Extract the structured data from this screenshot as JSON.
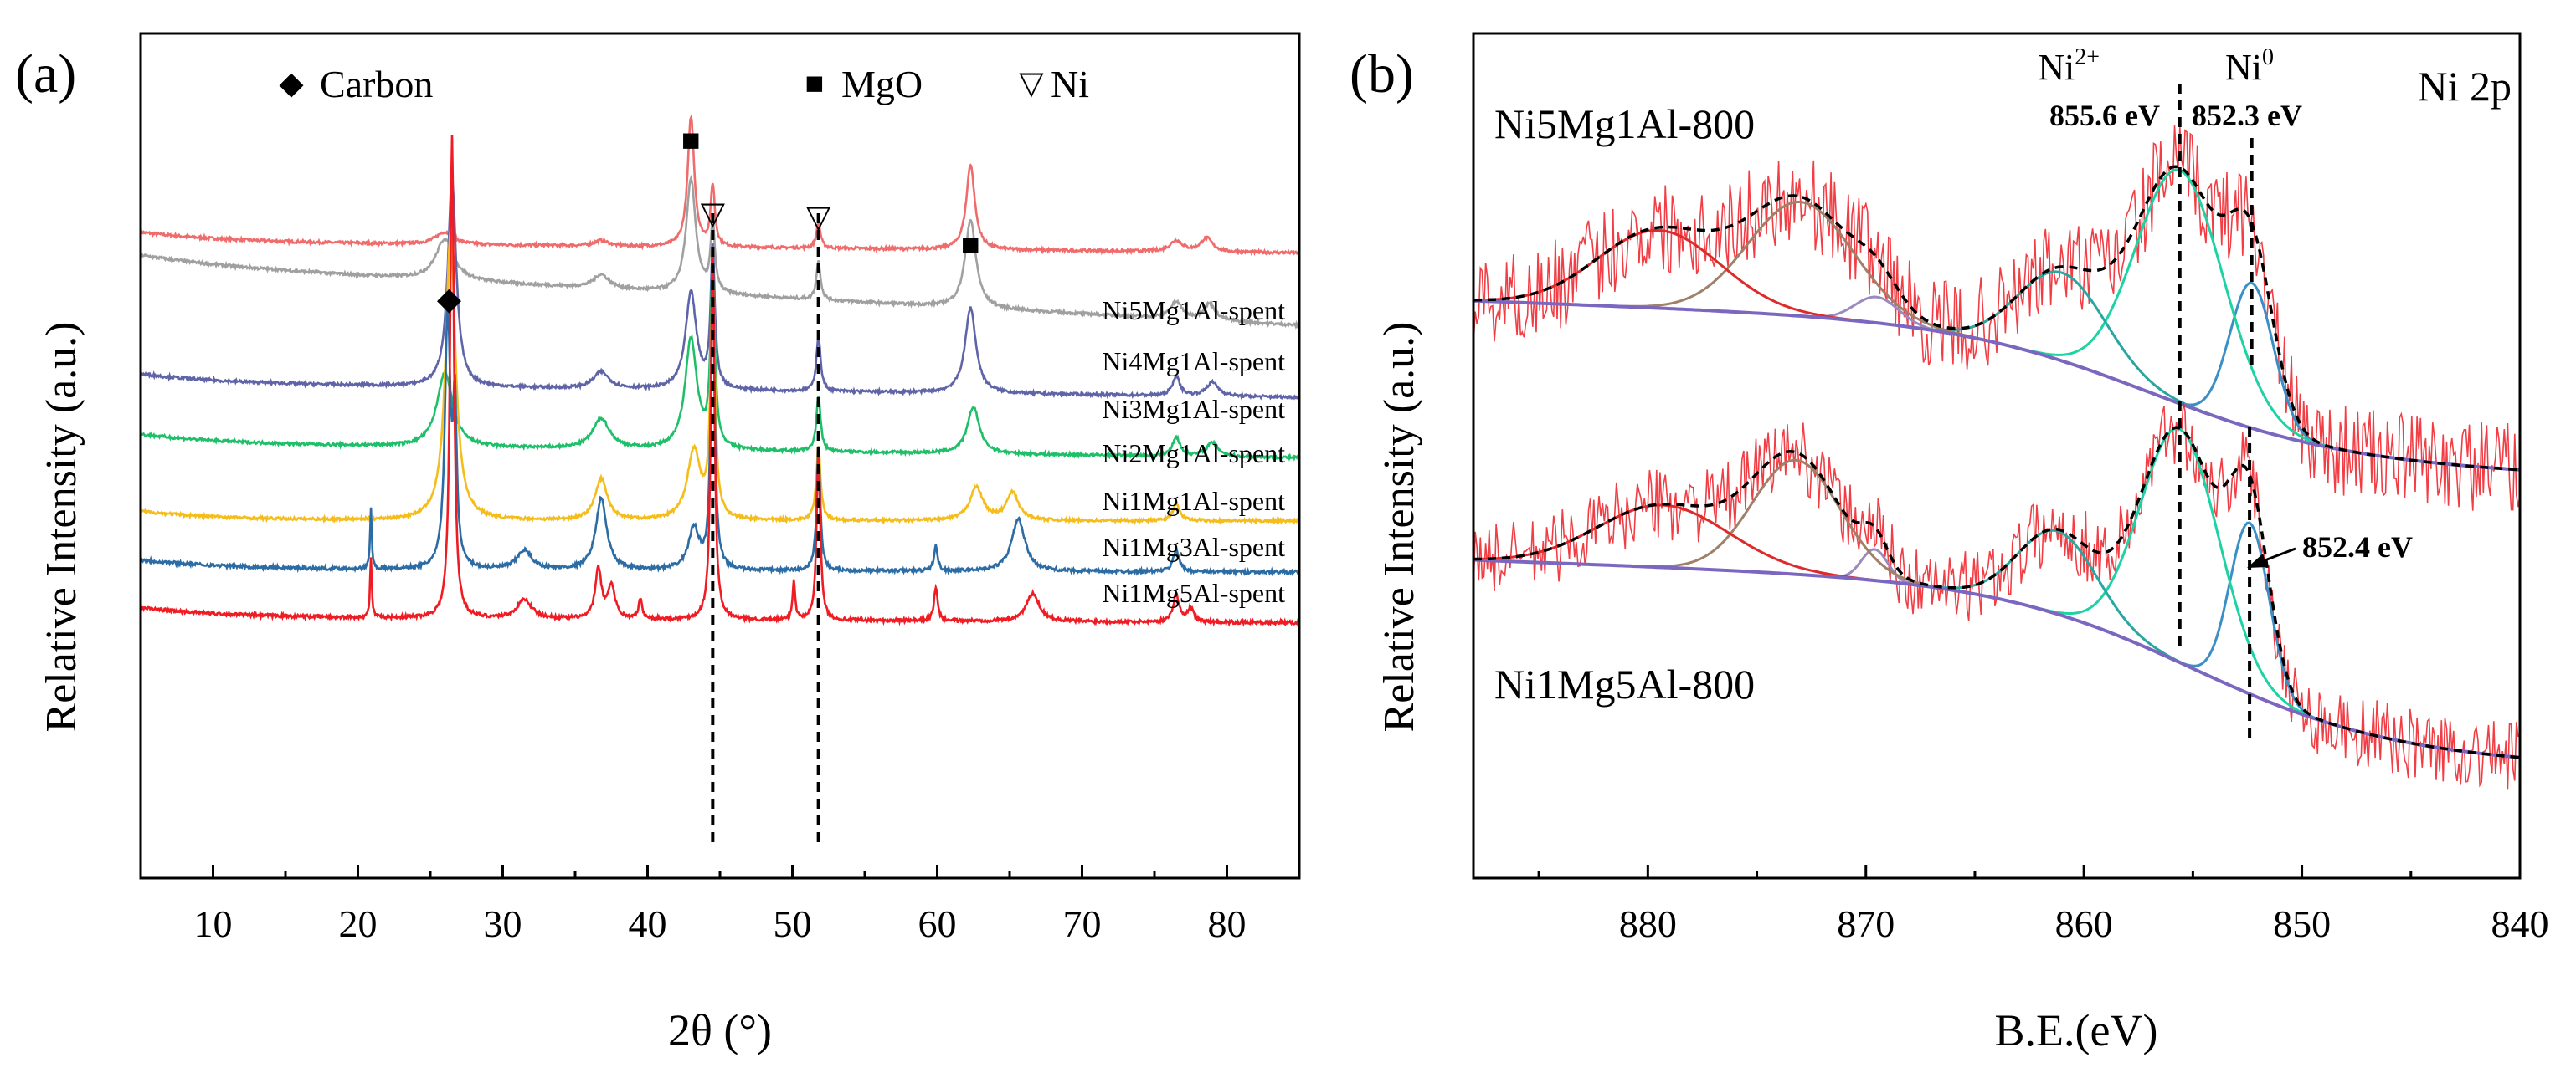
{
  "chart_data": [
    {
      "type": "line",
      "panel_label": "(a)",
      "xlabel": "2θ (°)",
      "ylabel": "Relative Intensity (a.u.)",
      "xlim": [
        5,
        85
      ],
      "xticks": [
        10,
        20,
        30,
        40,
        50,
        60,
        70,
        80
      ],
      "y_ticks_shown": false,
      "legend": [
        {
          "name": "Carbon",
          "marker": "diamond",
          "symbol": "◆"
        },
        {
          "name": "MgO",
          "marker": "square",
          "symbol": "■"
        },
        {
          "name": "Ni",
          "marker": "triangle-down-open",
          "symbol": "▽"
        }
      ],
      "series": [
        {
          "name": "Ni5Mg1Al-spent",
          "color": "#f06b6b",
          "baseline": 0.36,
          "tail": 0.32,
          "noise": 0.005,
          "peaks": [
            [
              26,
              0.045,
              1.5
            ],
            [
              36.8,
              0.02,
              1.2
            ],
            [
              43,
              0.47,
              0.55
            ],
            [
              44.5,
              0.22,
              0.35
            ],
            [
              51.8,
              0.09,
              0.35
            ],
            [
              62.3,
              0.31,
              0.7
            ],
            [
              76.5,
              0.04,
              1
            ],
            [
              78.6,
              0.05,
              1
            ]
          ]
        },
        {
          "name": "Ni4Mg1Al-spent",
          "color": "#a0a0a0",
          "baseline": 0.45,
          "tail": 0.23,
          "noise": 0.005,
          "peaks": [
            [
              26,
              0.15,
              1.5
            ],
            [
              36.8,
              0.05,
              1.3
            ],
            [
              43,
              0.41,
              0.8
            ],
            [
              44.5,
              0.25,
              0.35
            ],
            [
              51.8,
              0.14,
              0.35
            ],
            [
              62.3,
              0.32,
              0.9
            ],
            [
              76.5,
              0.06,
              1
            ],
            [
              78.8,
              0.06,
              1
            ]
          ]
        },
        {
          "name": "Ni3Mg1Al-spent",
          "color": "#5f64a8",
          "baseline": 0.18,
          "tail": 0.13,
          "noise": 0.005,
          "peaks": [
            [
              26.5,
              0.75,
              0.7
            ],
            [
              36.8,
              0.06,
              1.3
            ],
            [
              43,
              0.35,
              0.9
            ],
            [
              44.5,
              0.5,
              0.35
            ],
            [
              51.8,
              0.2,
              0.35
            ],
            [
              62.3,
              0.31,
              0.9
            ],
            [
              76.5,
              0.07,
              0.6
            ],
            [
              79,
              0.05,
              1
            ]
          ]
        },
        {
          "name": "Ni2Mg1Al-spent",
          "color": "#1fbf6a",
          "baseline": 0.14,
          "tail": 0.09,
          "noise": 0.005,
          "peaks": [
            [
              26,
              0.27,
              1.3
            ],
            [
              36.8,
              0.11,
              1.4
            ],
            [
              43,
              0.4,
              1.0
            ],
            [
              44.5,
              0.65,
              0.35
            ],
            [
              51.8,
              0.2,
              0.35
            ],
            [
              62.5,
              0.17,
              1.0
            ],
            [
              76.5,
              0.07,
              0.6
            ],
            [
              79,
              0.05,
              1
            ]
          ]
        },
        {
          "name": "Ni1Mg1Al-spent",
          "color": "#f5bd1b",
          "baseline": 0.04,
          "tail": 0.04,
          "noise": 0.005,
          "peaks": [
            [
              26.4,
              1.05,
              0.8
            ],
            [
              36.8,
              0.15,
              1.0
            ],
            [
              43.2,
              0.25,
              1.1
            ],
            [
              44.5,
              0.88,
              0.35
            ],
            [
              51.8,
              0.27,
              0.35
            ],
            [
              62.7,
              0.12,
              1.1
            ],
            [
              65.2,
              0.1,
              1.0
            ],
            [
              76.5,
              0.06,
              0.6
            ]
          ]
        },
        {
          "name": "Ni1Mg3Al-spent",
          "color": "#2c6ca5",
          "baseline": 0.04,
          "tail": 0.03,
          "noise": 0.006,
          "peaks": [
            [
              20.9,
              0.22,
              0.14
            ],
            [
              26.2,
              0.92,
              0.45
            ],
            [
              26.7,
              0.55,
              0.3
            ],
            [
              31.5,
              0.07,
              1.2
            ],
            [
              36.8,
              0.26,
              0.9
            ],
            [
              43.2,
              0.15,
              0.9
            ],
            [
              44.5,
              1.15,
              0.3
            ],
            [
              51.8,
              0.45,
              0.3
            ],
            [
              59.9,
              0.09,
              0.3
            ],
            [
              65.6,
              0.19,
              1.1
            ],
            [
              76.5,
              0.08,
              0.5
            ]
          ]
        },
        {
          "name": "Ni1Mg5Al-spent",
          "color": "#ef1c24",
          "baseline": 0.03,
          "tail": 0.01,
          "noise": 0.006,
          "peaks": [
            [
              20.9,
              0.22,
              0.14
            ],
            [
              26.5,
              1.75,
              0.32
            ],
            [
              31.5,
              0.07,
              1.2
            ],
            [
              36.6,
              0.18,
              0.5
            ],
            [
              37.5,
              0.12,
              0.6
            ],
            [
              39.5,
              0.07,
              0.3
            ],
            [
              44.5,
              1.35,
              0.3
            ],
            [
              50.1,
              0.14,
              0.22
            ],
            [
              51.8,
              0.62,
              0.3
            ],
            [
              59.9,
              0.12,
              0.3
            ],
            [
              66.6,
              0.1,
              1.1
            ],
            [
              76.5,
              0.1,
              0.5
            ],
            [
              77.5,
              0.05,
              0.5
            ]
          ]
        }
      ],
      "peak_markers": [
        {
          "phase": "Carbon",
          "x": 26.3,
          "symbol": "◆"
        },
        {
          "phase": "MgO",
          "x": 43.0,
          "symbol": "■"
        },
        {
          "phase": "Ni",
          "x": 44.5,
          "symbol": "▽"
        },
        {
          "phase": "Ni",
          "x": 51.8,
          "symbol": "▽"
        },
        {
          "phase": "MgO",
          "x": 62.3,
          "symbol": "■"
        }
      ],
      "reference_lines_x": [
        44.5,
        51.8
      ]
    },
    {
      "type": "line",
      "panel_label": "(b)",
      "title": "Ni 2p",
      "xlabel": "B.E.(eV)",
      "ylabel": "Relative Intensity (a.u.)",
      "xlim": [
        888,
        840
      ],
      "x_reversed": true,
      "xticks": [
        880,
        870,
        860,
        850,
        840
      ],
      "y_ticks_shown": false,
      "spectra": [
        {
          "name": "Ni5Mg1Al-800",
          "offset": 0.52,
          "bg_high": 0.3,
          "bg_low": 0.04,
          "bg_step": 857,
          "noise": 0.09,
          "components": [
            {
              "name": "Ni0 2p3/2",
              "center": 852.3,
              "height": 0.28,
              "width": 1.0,
              "color": "#3c8fc4"
            },
            {
              "name": "Ni2+ 2p3/2",
              "center": 855.6,
              "height": 0.45,
              "width": 2.0,
              "color": "#1fd2a4"
            },
            {
              "name": "satellite 861",
              "center": 861.0,
              "height": 0.17,
              "width": 2.0,
              "color": "#2aa6a0"
            },
            {
              "name": "Ni0 2p1/2",
              "center": 869.5,
              "height": 0.05,
              "width": 1.0,
              "color": "#9a8ac0"
            },
            {
              "name": "Ni2+ 2p1/2",
              "center": 873.0,
              "height": 0.22,
              "width": 2.4,
              "color": "#a08068"
            },
            {
              "name": "satellite 879",
              "center": 879.5,
              "height": 0.15,
              "width": 2.8,
              "color": "#dd2a2a"
            }
          ]
        },
        {
          "name": "Ni1Mg5Al-800",
          "offset": 0.0,
          "bg_high": 0.32,
          "bg_low": 0.0,
          "bg_step": 855,
          "noise": 0.07,
          "components": [
            {
              "name": "Ni0 2p3/2",
              "center": 852.4,
              "height": 0.33,
              "width": 0.9,
              "color": "#3c8fc4"
            },
            {
              "name": "Ni2+ 2p3/2",
              "center": 855.6,
              "height": 0.45,
              "width": 1.8,
              "color": "#1fd2a4"
            },
            {
              "name": "satellite 861",
              "center": 861.2,
              "height": 0.16,
              "width": 1.8,
              "color": "#2aa6a0"
            },
            {
              "name": "Ni0 2p1/2",
              "center": 869.6,
              "height": 0.06,
              "width": 0.6,
              "color": "#9a8ac0"
            },
            {
              "name": "Ni2+ 2p1/2",
              "center": 873.2,
              "height": 0.22,
              "width": 2.0,
              "color": "#a08068"
            },
            {
              "name": "satellite 879",
              "center": 879.3,
              "height": 0.12,
              "width": 3.0,
              "color": "#dd2a2a"
            }
          ]
        }
      ],
      "colors": {
        "raw_data": "#ef1c24",
        "envelope": "#000000",
        "background": "#7b67c0"
      },
      "annotations": [
        {
          "label": "Ni",
          "sup": "2+",
          "value": "855.6 eV",
          "x": 855.6
        },
        {
          "label": "Ni",
          "sup": "0",
          "value": "852.3 eV",
          "x": 852.3
        },
        {
          "value": "852.4 eV",
          "x": 852.4,
          "arrow": true
        }
      ],
      "reference_lines_x": [
        855.6,
        852.3,
        852.4
      ]
    }
  ]
}
